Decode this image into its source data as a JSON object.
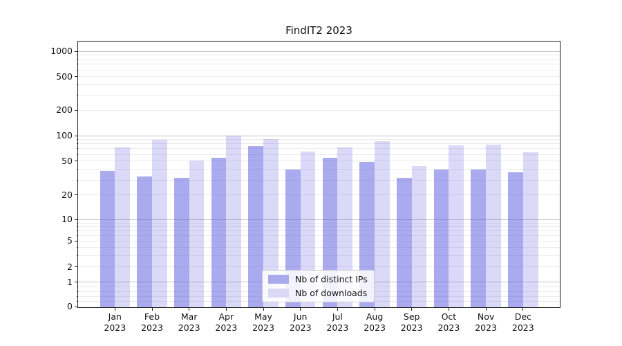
{
  "chart_data": {
    "type": "bar",
    "title": "FindIT2 2023",
    "x_labels": [
      [
        "Jan",
        "2023"
      ],
      [
        "Feb",
        "2023"
      ],
      [
        "Mar",
        "2023"
      ],
      [
        "Apr",
        "2023"
      ],
      [
        "May",
        "2023"
      ],
      [
        "Jun",
        "2023"
      ],
      [
        "Jul",
        "2023"
      ],
      [
        "Aug",
        "2023"
      ],
      [
        "Sep",
        "2023"
      ],
      [
        "Oct",
        "2023"
      ],
      [
        "Nov",
        "2023"
      ],
      [
        "Dec",
        "2023"
      ]
    ],
    "series": [
      {
        "name": "Nb of distinct IPs",
        "values": [
          38,
          33,
          32,
          55,
          75,
          40,
          55,
          49,
          32,
          40,
          40,
          37
        ],
        "fill": "rgba(85,85,221,0.5)",
        "legend_swatch": "#aaaaee"
      },
      {
        "name": "Nb of downloads",
        "values": [
          72,
          89,
          51,
          101,
          91,
          65,
          73,
          86,
          44,
          77,
          78,
          64
        ],
        "fill": "rgba(85,85,221,0.22)",
        "legend_swatch": "#d9d9f7"
      }
    ],
    "y_axis": {
      "scale": "symlog",
      "ylim": [
        0,
        1000
      ],
      "tick_labels": [
        "1000",
        "500",
        "200",
        "100",
        "50",
        "20",
        "10",
        "5",
        "2",
        "1",
        "0"
      ],
      "tick_values": [
        1000,
        500,
        200,
        100,
        50,
        20,
        10,
        5,
        2,
        1,
        0
      ]
    },
    "grid": {
      "enabled": true,
      "major_color": "#c3c3c3",
      "minor_color": "#ebebeb"
    },
    "legend": {
      "position": "lower center",
      "entries": [
        "Nb of distinct IPs",
        "Nb of downloads"
      ]
    }
  }
}
